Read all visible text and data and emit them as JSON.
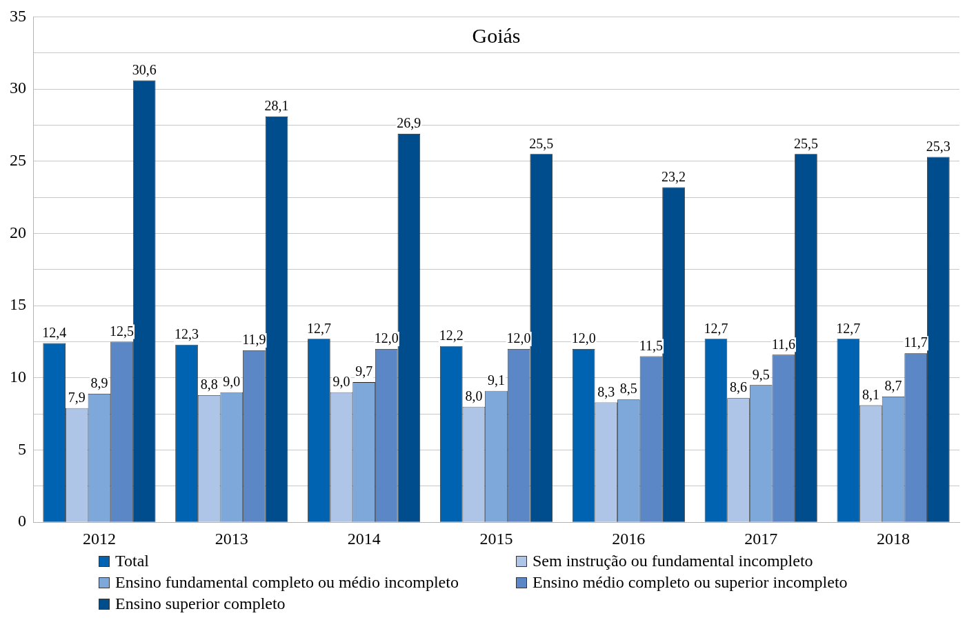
{
  "chart_data": {
    "type": "bar",
    "title": "Goiás",
    "categories": [
      "2012",
      "2013",
      "2014",
      "2015",
      "2016",
      "2017",
      "2018"
    ],
    "series": [
      {
        "name": "Total",
        "color": "#0063b1",
        "values": [
          12.4,
          12.3,
          12.7,
          12.2,
          12.0,
          12.7,
          12.7
        ],
        "value_labels": [
          "12,4",
          "12,3",
          "12,7",
          "12,2",
          "12,0",
          "12,7",
          "12,7"
        ]
      },
      {
        "name": "Sem instrução ou fundamental incompleto",
        "color": "#aec5e8",
        "values": [
          7.9,
          8.8,
          9.0,
          8.0,
          8.3,
          8.6,
          8.1
        ],
        "value_labels": [
          "7,9",
          "8,8",
          "9,0",
          "8,0",
          "8,3",
          "8,6",
          "8,1"
        ]
      },
      {
        "name": "Ensino fundamental completo ou médio incompleto",
        "color": "#7ea7da",
        "values": [
          8.9,
          9.0,
          9.7,
          9.1,
          8.5,
          9.5,
          8.7
        ],
        "value_labels": [
          "8,9",
          "9,0",
          "9,7",
          "9,1",
          "8,5",
          "9,5",
          "8,7"
        ]
      },
      {
        "name": "Ensino médio completo ou superior incompleto",
        "color": "#5b87c6",
        "values": [
          12.5,
          11.9,
          12.0,
          12.0,
          11.5,
          11.6,
          11.7
        ],
        "value_labels": [
          "12,5",
          "11,9",
          "12,0",
          "12,0",
          "11,5",
          "11,6",
          "11,7"
        ]
      },
      {
        "name": "Ensino superior completo",
        "color": "#004d8d",
        "values": [
          30.6,
          28.1,
          26.9,
          25.5,
          23.2,
          25.5,
          25.3
        ],
        "value_labels": [
          "30,6",
          "28,1",
          "26,9",
          "25,5",
          "23,2",
          "25,5",
          "25,3"
        ]
      }
    ],
    "ylim": [
      0,
      35
    ],
    "yticks": [
      0,
      {
        "value": 2.5,
        "label": null
      },
      5,
      {
        "value": 7.5,
        "label": null
      },
      10,
      {
        "value": 12.5,
        "label": null
      },
      15,
      {
        "value": 17.5,
        "label": null
      },
      20,
      {
        "value": 22.5,
        "label": null
      },
      25,
      {
        "value": 27.5,
        "label": null
      },
      30,
      {
        "value": 32.5,
        "label": null
      },
      35
    ],
    "grid": "y",
    "legend": "bottom"
  }
}
